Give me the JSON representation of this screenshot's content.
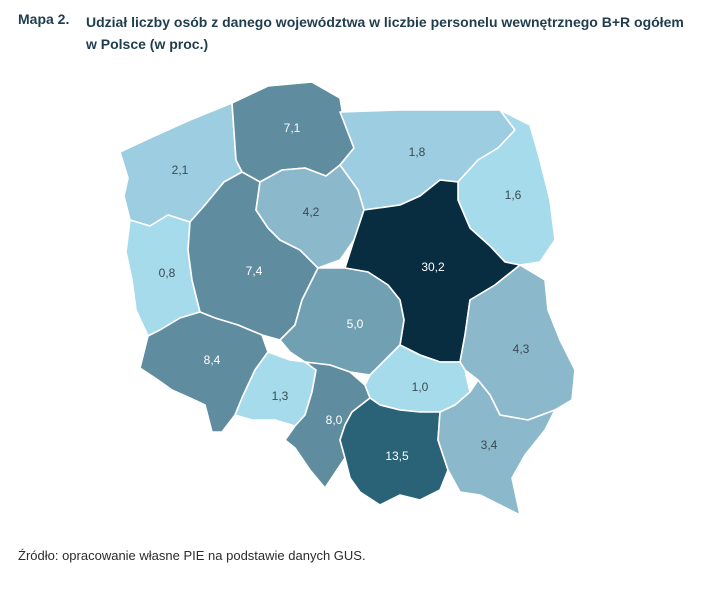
{
  "header": {
    "label": "Mapa 2.",
    "title": "Udział liczby osób z danego województwa w liczbie personelu wewnętrznego B+R ogółem w Polsce (w proc.)"
  },
  "source": "Źródło: opracowanie własne PIE na podstawie danych GUS.",
  "colors": {
    "light": "#a6dbeb",
    "light_mid": "#9dcde0",
    "mid": "#8bb8cb",
    "mid_dark": "#72a0b3",
    "dark_mid": "#5f8c9f",
    "dark": "#2a6277",
    "darkest": "#082c40"
  },
  "regions": [
    {
      "name": "zachodniopomorskie",
      "value": "2,1"
    },
    {
      "name": "pomorskie",
      "value": "7,1"
    },
    {
      "name": "warmińsko-mazurskie",
      "value": "1,8"
    },
    {
      "name": "podlaskie",
      "value": "1,6"
    },
    {
      "name": "lubuskie",
      "value": "0,8"
    },
    {
      "name": "wielkopolskie",
      "value": "7,4"
    },
    {
      "name": "kujawsko-pomorskie",
      "value": "4,2"
    },
    {
      "name": "mazowieckie",
      "value": "30,2"
    },
    {
      "name": "łódzkie",
      "value": "5,0"
    },
    {
      "name": "lubelskie",
      "value": "4,3"
    },
    {
      "name": "dolnośląskie",
      "value": "8,4"
    },
    {
      "name": "opolskie",
      "value": "1,3"
    },
    {
      "name": "śląskie",
      "value": "8,0"
    },
    {
      "name": "świętokrzyskie",
      "value": "1,0"
    },
    {
      "name": "małopolskie",
      "value": "13,5"
    },
    {
      "name": "podkarpackie",
      "value": "3,4"
    }
  ]
}
